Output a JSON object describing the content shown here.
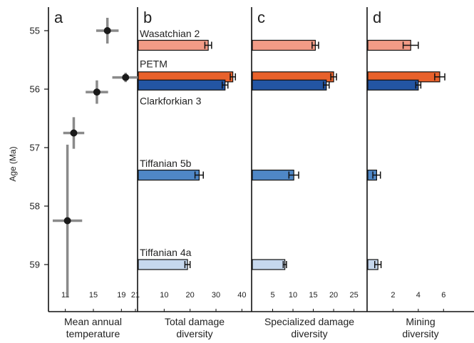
{
  "ylabel": "Age (Ma)",
  "yticks": [
    "55",
    "56",
    "57",
    "58",
    "59"
  ],
  "colors": {
    "Wasatchian 2": "#f29b86",
    "PETM": "#e8612b",
    "Clarkforkian 3": "#2355a3",
    "Tiffanian 5b": "#4f87c6",
    "Tiffanian 4a": "#c6d8ee",
    "point": "#1a1a1a",
    "errorbar_temp": "#8a8a8a"
  },
  "chart_data": [
    {
      "panel": "a",
      "type": "scatter",
      "xlabel": "Mean annual temperature",
      "xlim": [
        9,
        21
      ],
      "xticks": [
        11,
        15,
        19,
        21
      ],
      "ylim": [
        54.6,
        59.7
      ],
      "points": [
        {
          "x": 17.0,
          "y": 55.0,
          "xerr": 1.6,
          "yerr": 0.22
        },
        {
          "x": 19.6,
          "y": 55.8,
          "xerr": 1.9,
          "yerr": 0.08
        },
        {
          "x": 15.5,
          "y": 56.05,
          "xerr": 1.6,
          "yerr": 0.2
        },
        {
          "x": 12.2,
          "y": 56.75,
          "xerr": 1.5,
          "yerr": 0.27
        },
        {
          "x": 11.3,
          "y": 58.25,
          "xerr": 2.1,
          "yerr": 1.3
        }
      ]
    },
    {
      "panel": "b",
      "type": "bar",
      "xlabel": "Total damage diversity",
      "xlim": [
        0,
        41
      ],
      "xticks": [
        10,
        20,
        30,
        40
      ],
      "series": [
        {
          "name": "Wasatchian 2",
          "y": 55.25,
          "value": 27.0,
          "err": 1.3
        },
        {
          "name": "PETM",
          "y": 55.79,
          "value": 36.5,
          "err": 1.0
        },
        {
          "name": "Clarkforkian 3",
          "y": 55.93,
          "value": 33.5,
          "err": 1.1
        },
        {
          "name": "Tiffanian 5b",
          "y": 57.47,
          "value": 23.5,
          "err": 1.6
        },
        {
          "name": "Tiffanian 4a",
          "y": 59.0,
          "value": 19.0,
          "err": 1.0
        }
      ],
      "labels": [
        {
          "text": "Wasatchian 2",
          "y": 55.05
        },
        {
          "text": "PETM",
          "y": 55.57
        },
        {
          "text": "Clarkforkian 3",
          "y": 56.2
        },
        {
          "text": "Tiffanian 5b",
          "y": 57.27
        },
        {
          "text": "Tiffanian 4a",
          "y": 58.79
        }
      ]
    },
    {
      "panel": "c",
      "type": "bar",
      "xlabel": "Specialized damage diversity",
      "xlim": [
        0,
        27
      ],
      "xticks": [
        5,
        10,
        15,
        20,
        25
      ],
      "series": [
        {
          "name": "Wasatchian 2",
          "y": 55.25,
          "value": 15.5,
          "err": 0.8
        },
        {
          "name": "PETM",
          "y": 55.79,
          "value": 20.0,
          "err": 0.7
        },
        {
          "name": "Clarkforkian 3",
          "y": 55.93,
          "value": 18.2,
          "err": 0.7
        },
        {
          "name": "Tiffanian 5b",
          "y": 57.47,
          "value": 10.2,
          "err": 1.2
        },
        {
          "name": "Tiffanian 4a",
          "y": 59.0,
          "value": 8.0,
          "err": 0.4
        }
      ]
    },
    {
      "panel": "d",
      "type": "bar",
      "xlabel": "Mining diversity",
      "xlim": [
        0,
        8.3
      ],
      "xticks": [
        2,
        4,
        6
      ],
      "series": [
        {
          "name": "Wasatchian 2",
          "y": 55.25,
          "value": 3.4,
          "err": 0.6
        },
        {
          "name": "PETM",
          "y": 55.79,
          "value": 5.7,
          "err": 0.4
        },
        {
          "name": "Clarkforkian 3",
          "y": 55.93,
          "value": 4.0,
          "err": 0.2
        },
        {
          "name": "Tiffanian 5b",
          "y": 57.47,
          "value": 0.7,
          "err": 0.3
        },
        {
          "name": "Tiffanian 4a",
          "y": 59.0,
          "value": 0.8,
          "err": 0.25
        }
      ]
    }
  ]
}
